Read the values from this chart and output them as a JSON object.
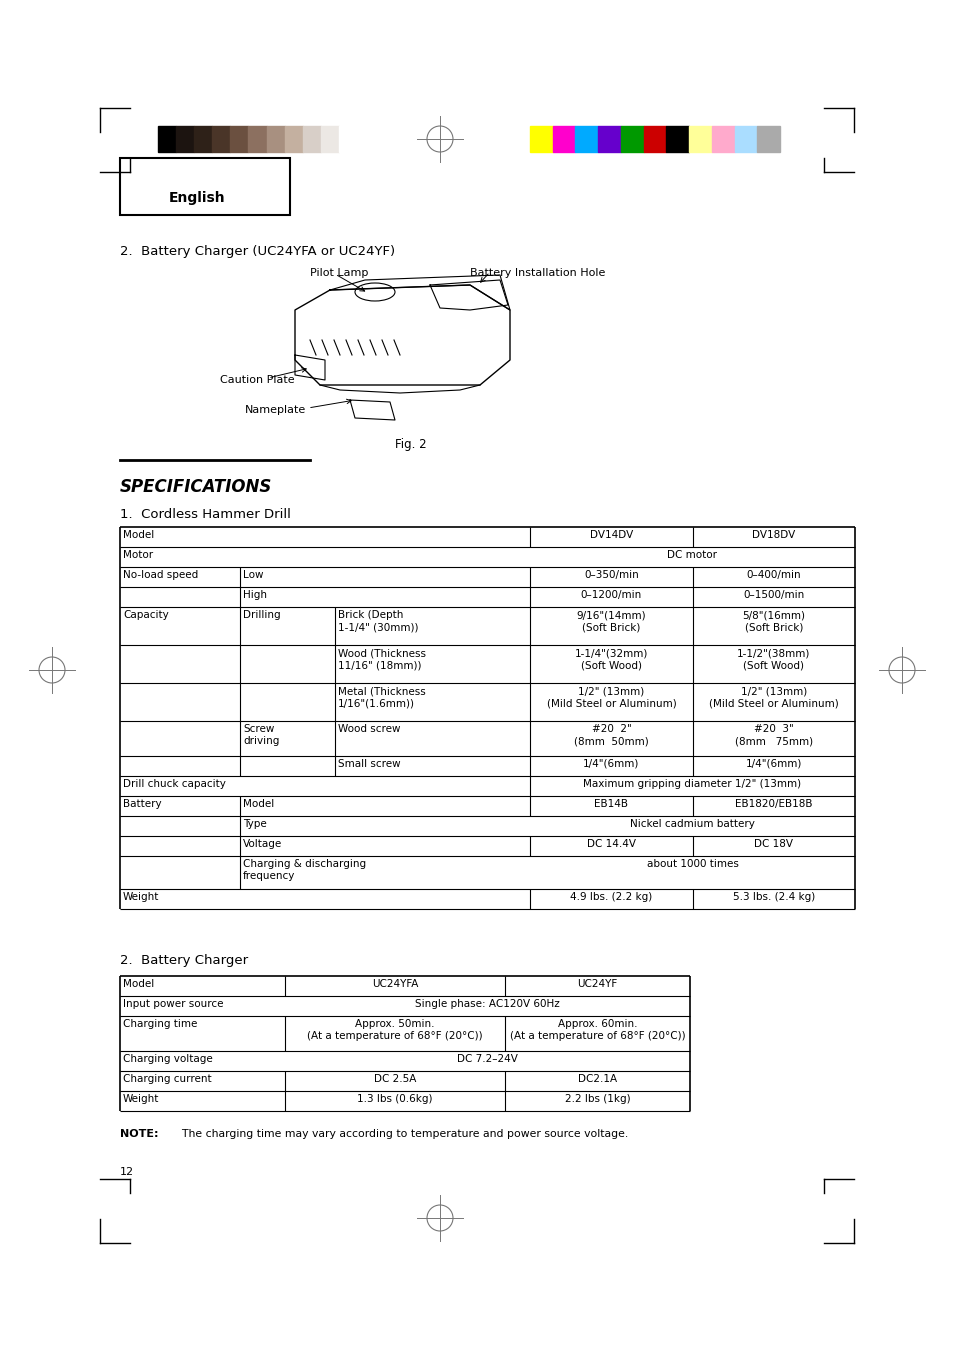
{
  "page_bg": "#ffffff",
  "color_bar_left_colors": [
    "#000000",
    "#1c1410",
    "#2e2118",
    "#4a3528",
    "#6b5040",
    "#8c7060",
    "#a89080",
    "#c4b0a0",
    "#d8cfc8",
    "#ece8e4",
    "#ffffff"
  ],
  "color_bar_right_colors": [
    "#ffff00",
    "#ff00cc",
    "#00aaff",
    "#6600cc",
    "#009900",
    "#cc0000",
    "#000000",
    "#ffff99",
    "#ffaacc",
    "#aaddff",
    "#aaaaaa"
  ],
  "english_label": "English",
  "section2_title": "2.  Battery Charger (UC24YFA or UC24YF)",
  "pilot_lamp_label": "Pilot Lamp",
  "battery_hole_label": "Battery Installation Hole",
  "caution_plate_label": "Caution Plate",
  "nameplate_label": "Nameplate",
  "fig2_label": "Fig. 2",
  "specs_title": "SPECIFICATIONS",
  "section1_title": "1.  Cordless Hammer Drill",
  "section2_title2": "2.  Battery Charger",
  "note_bold": "NOTE:",
  "note_rest": "    The charging time may vary according to temperature and power source voltage.",
  "page_number": "12"
}
